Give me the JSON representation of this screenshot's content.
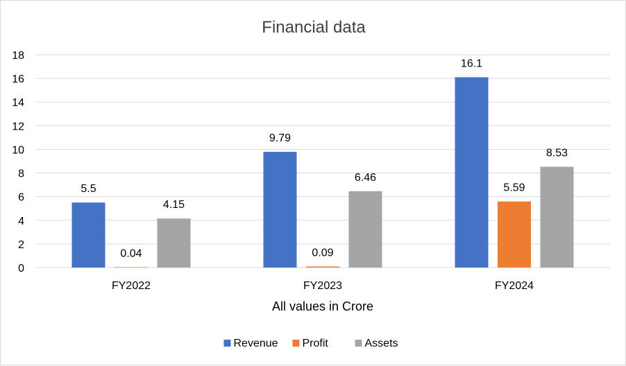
{
  "chart_data": {
    "type": "bar",
    "title": "Financial data",
    "xlabel": "All values in Crore",
    "ylabel": "",
    "ylim": [
      0,
      18
    ],
    "yticks": [
      0,
      2,
      4,
      6,
      8,
      10,
      12,
      14,
      16,
      18
    ],
    "categories": [
      "FY2022",
      "FY2023",
      "FY2024"
    ],
    "series": [
      {
        "name": "Revenue",
        "color": "#4472C4",
        "values": [
          5.5,
          9.79,
          16.1
        ],
        "labels": [
          "5.5",
          "9.79",
          "16.1"
        ]
      },
      {
        "name": "Profit",
        "color": "#ED7D31",
        "values": [
          0.04,
          0.09,
          5.59
        ],
        "labels": [
          "0.04",
          "0.09",
          "5.59"
        ]
      },
      {
        "name": "Assets",
        "color": "#A5A5A5",
        "values": [
          4.15,
          6.46,
          8.53
        ],
        "labels": [
          "4.15",
          "6.46",
          "8.53"
        ]
      }
    ],
    "grid": true,
    "legend_position": "bottom"
  }
}
